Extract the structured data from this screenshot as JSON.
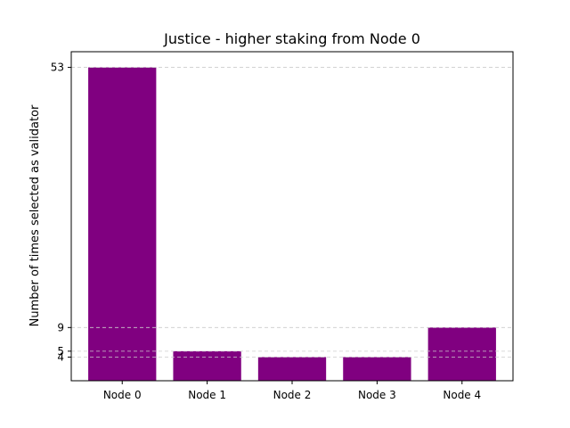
{
  "chart_data": {
    "type": "bar",
    "title": "Justice - higher staking from Node 0",
    "xlabel": "",
    "ylabel": "Number of times selected as validator",
    "categories": [
      "Node 0",
      "Node 1",
      "Node 2",
      "Node 3",
      "Node 4"
    ],
    "values": [
      53,
      5,
      4,
      4,
      9
    ],
    "yticks": [
      4,
      5,
      9,
      53
    ],
    "ylim": [
      0,
      55.65
    ],
    "bar_color": "#800080",
    "grid": "y, dashed",
    "legend": "none"
  }
}
